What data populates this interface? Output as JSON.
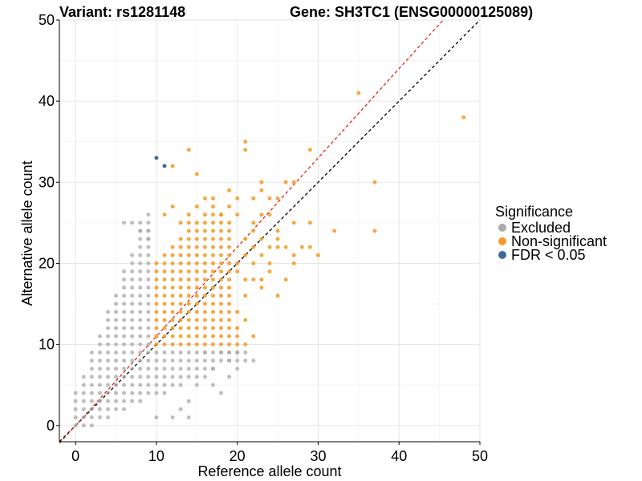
{
  "chart_data": {
    "type": "scatter",
    "title_left": "Variant: rs1281148",
    "title_right": "Gene: SH3TC1 (ENSG00000125089)",
    "xlabel": "Reference allele count",
    "ylabel": "Alternative allele count",
    "xlim": [
      -2,
      50
    ],
    "ylim": [
      -2,
      50
    ],
    "xticks": [
      0,
      10,
      20,
      30,
      40,
      50
    ],
    "yticks": [
      0,
      10,
      20,
      30,
      40,
      50
    ],
    "grid": true,
    "legend": {
      "title": "Significance",
      "position": "right",
      "entries": [
        {
          "label": "Excluded",
          "color": "#aaaaaa"
        },
        {
          "label": "Non-significant",
          "color": "#f59a23"
        },
        {
          "label": "FDR < 0.05",
          "color": "#3f6d9a"
        }
      ]
    },
    "reference_lines": [
      {
        "name": "identity",
        "slope": 1,
        "intercept": 0,
        "color": "#000000",
        "style": "dashed"
      },
      {
        "name": "fit",
        "slope": 1.1,
        "intercept": 0,
        "color": "#e8231f",
        "style": "dashed"
      }
    ],
    "series": [
      {
        "name": "Excluded",
        "color": "#aaaaaa",
        "rule": "reference < 10 or alternative < 10",
        "extra_points": [
          [
            6,
            25
          ],
          [
            7,
            25
          ],
          [
            8,
            25
          ],
          [
            9,
            26
          ],
          [
            8,
            24
          ],
          [
            9,
            24
          ],
          [
            9,
            23
          ],
          [
            14,
            3
          ],
          [
            13,
            2
          ],
          [
            14,
            1
          ],
          [
            12,
            1
          ],
          [
            10,
            1
          ],
          [
            18,
            4
          ],
          [
            17,
            5
          ],
          [
            16,
            6
          ],
          [
            15,
            5
          ],
          [
            19,
            6
          ],
          [
            20,
            7
          ],
          [
            22,
            8
          ],
          [
            21,
            8
          ],
          [
            19,
            8
          ],
          [
            17,
            7
          ],
          [
            18,
            9
          ],
          [
            16,
            9
          ],
          [
            19,
            9
          ],
          [
            20,
            9
          ],
          [
            21,
            9
          ]
        ]
      },
      {
        "name": "Non-significant",
        "color": "#f59a23",
        "rule": "both counts >= 10",
        "extra_points": [
          [
            35,
            41
          ],
          [
            48,
            38
          ],
          [
            37,
            30
          ],
          [
            37,
            24
          ],
          [
            30,
            21
          ],
          [
            32,
            24
          ],
          [
            29,
            34
          ],
          [
            29,
            22
          ],
          [
            27,
            20
          ],
          [
            27,
            21
          ],
          [
            28,
            22
          ],
          [
            26,
            22
          ],
          [
            25,
            22
          ],
          [
            24,
            22
          ],
          [
            25,
            24
          ],
          [
            27,
            25
          ],
          [
            29,
            25
          ],
          [
            25,
            28
          ],
          [
            24,
            26
          ],
          [
            23,
            29
          ],
          [
            23,
            30
          ],
          [
            21,
            34
          ],
          [
            21,
            35
          ],
          [
            14,
            34
          ],
          [
            15,
            31
          ],
          [
            12,
            32
          ],
          [
            22,
            28
          ],
          [
            26,
            30
          ],
          [
            27,
            30
          ],
          [
            20,
            20
          ],
          [
            20,
            19
          ],
          [
            21,
            18
          ],
          [
            21,
            16
          ],
          [
            22,
            18
          ],
          [
            23,
            17
          ],
          [
            23,
            21
          ],
          [
            22,
            20
          ],
          [
            21,
            10
          ],
          [
            22,
            11
          ],
          [
            20,
            11
          ],
          [
            20,
            12
          ],
          [
            21,
            13
          ],
          [
            20,
            14
          ],
          [
            19,
            10
          ],
          [
            20,
            10
          ],
          [
            25,
            16
          ],
          [
            24,
            19
          ],
          [
            26,
            18
          ],
          [
            11,
            26
          ],
          [
            12,
            27
          ],
          [
            13,
            25
          ],
          [
            14,
            25
          ],
          [
            14,
            26
          ],
          [
            15,
            27
          ],
          [
            16,
            28
          ],
          [
            17,
            28
          ],
          [
            18,
            26
          ],
          [
            19,
            27
          ],
          [
            20,
            28
          ],
          [
            19,
            29
          ],
          [
            20,
            26
          ],
          [
            21,
            23
          ],
          [
            22,
            24
          ],
          [
            23,
            26
          ],
          [
            24,
            28
          ],
          [
            25,
            23
          ],
          [
            22,
            25
          ],
          [
            23,
            18
          ],
          [
            21,
            21
          ],
          [
            22,
            22
          ],
          [
            24,
            20
          ],
          [
            23,
            23
          ]
        ]
      },
      {
        "name": "FDR < 0.05",
        "color": "#3f6d9a",
        "points": [
          [
            10,
            33
          ],
          [
            11,
            32
          ]
        ]
      }
    ]
  }
}
